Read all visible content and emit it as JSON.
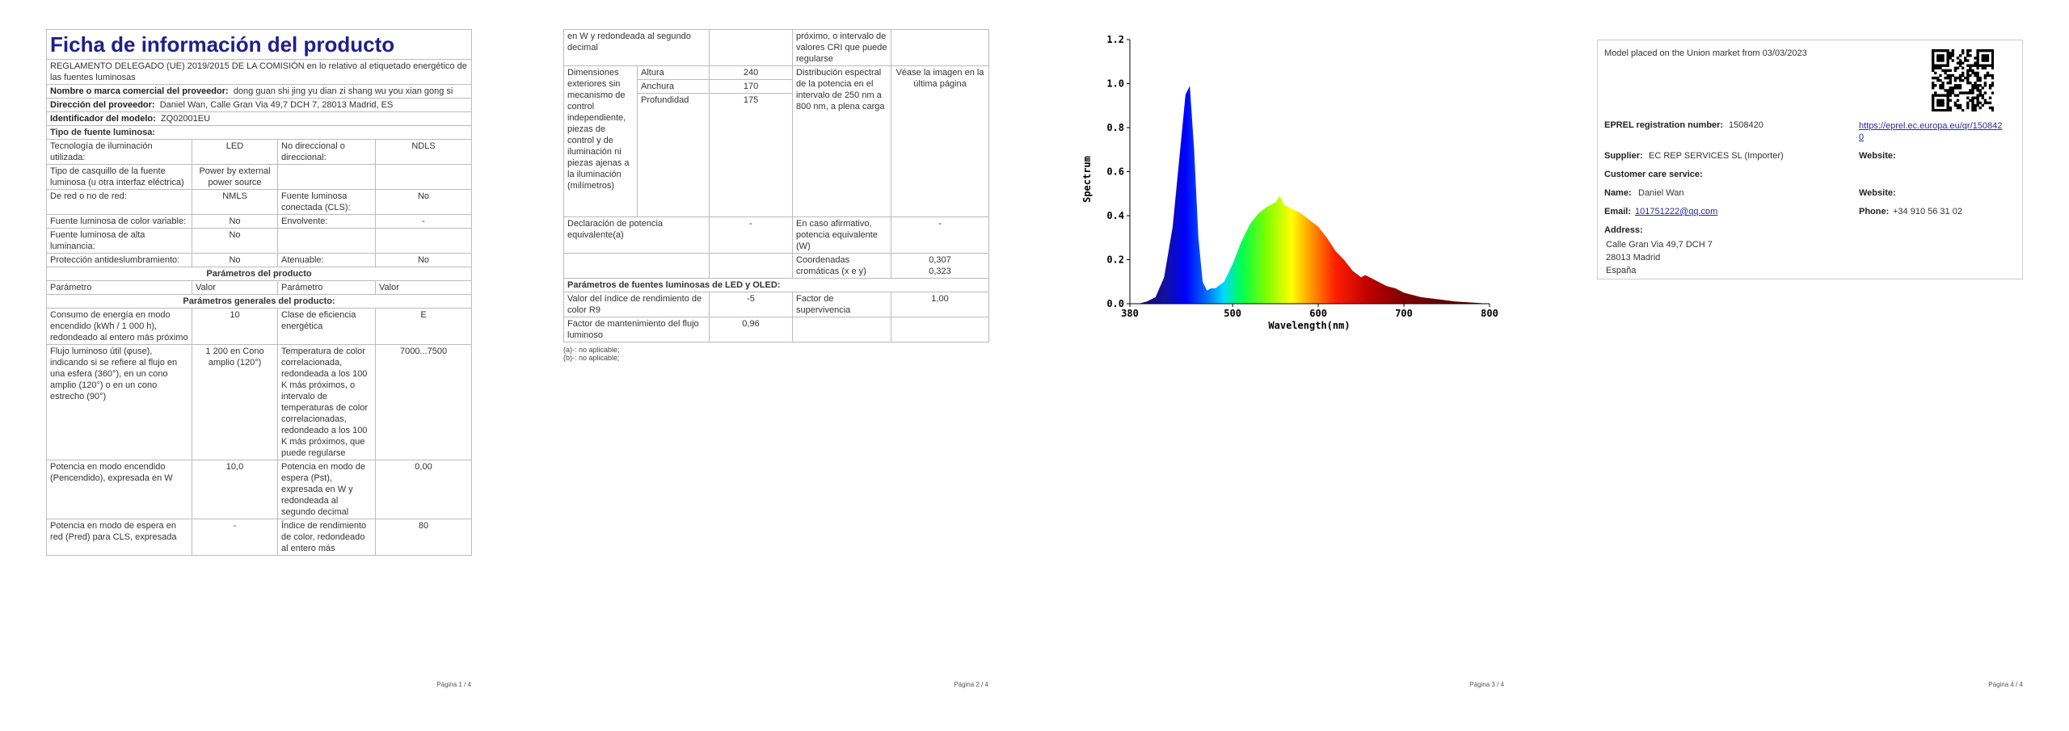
{
  "page1": {
    "title": "Ficha de información del producto",
    "regulation": "REGLAMENTO DELEGADO (UE) 2019/2015 DE LA COMISIÓN en lo relativo al etiquetado energético de las fuentes luminosas",
    "supplier_fields": [
      {
        "label": "Nombre o marca comercial del proveedor:",
        "value": "dong guan shi jing yu dian zi shang wu you xian gong si"
      },
      {
        "label": "Dirección del proveedor:",
        "value": "Daniel Wan, Calle Gran Via 49,7 DCH 7, 28013 Madrid, ES"
      },
      {
        "label": "Identificador del modelo:",
        "value": "ZQ02001EU"
      }
    ],
    "source_type_heading": "Tipo de fuente luminosa:",
    "source_type_rows": [
      [
        "Tecnología de iluminación utilizada:",
        "LED",
        "No direccional o direccional:",
        "NDLS"
      ],
      [
        "Tipo de casquillo de la fuente luminosa (u otra interfaz eléctrica)",
        "Power by external power source",
        null,
        null
      ],
      [
        "De red o no de red:",
        "NMLS",
        "Fuente luminosa conectada (CLS):",
        "No"
      ],
      [
        "Fuente luminosa de color variable:",
        "No",
        "Envolvente:",
        "-"
      ],
      [
        "Fuente luminosa de alta luminancia:",
        "No",
        null,
        null
      ],
      [
        "Protección antideslumbramiento:",
        "No",
        "Atenuable:",
        "No"
      ]
    ],
    "params_heading": "Parámetros del producto",
    "param_columns": [
      "Parámetro",
      "Valor",
      "Parámetro",
      "Valor"
    ],
    "general_heading": "Parámetros generales del producto:",
    "general_rows": [
      [
        "Consumo de energía en modo encendido (kWh / 1 000 h), redondeado al entero más próximo",
        "10",
        "Clase de eficiencia energética",
        "E"
      ],
      [
        "Flujo luminoso útil (φuse), indicando si se refiere al flujo en una esfera (360°), en un cono amplio (120°) o en un cono estrecho (90°)",
        "1 200 en Cono amplio (120°)",
        "Temperatura de color correlacionada, redondeada a los 100 K más próximos, o intervalo de temperaturas de color correlacionadas, redondeado a los 100 K más próximos, que puede regularse",
        "7000...7500"
      ],
      [
        "Potencia en modo encendido (Pencendido), expresada en W",
        "10,0",
        "Potencia en modo de espera (Pst), expresada en W y redondeada al segundo decimal",
        "0,00"
      ],
      [
        "Potencia en modo de espera en red (Pred) para CLS, expresada",
        "-",
        "Índice de rendimiento de color, redondeado al entero más",
        "80"
      ]
    ]
  },
  "page2": {
    "continued_rows": [
      [
        "en W y redondeada al segundo decimal",
        null,
        "próximo, o intervalo de valores CRI que puede regularse",
        null
      ]
    ],
    "dimensions": {
      "label": "Dimensiones exteriores sin mecanismo de control independiente, piezas de control y de iluminación ni piezas ajenas a la iluminación (milímetros)",
      "items": [
        {
          "label": "Altura",
          "value": "240"
        },
        {
          "label": "Anchura",
          "value": "170"
        },
        {
          "label": "Profundidad",
          "value": "175"
        }
      ],
      "spectral_label": "Distribución espectral de la potencia en el intervalo de 250 nm a 800 nm, a plena carga",
      "spectral_value": "Véase la imagen en la última página"
    },
    "equivalent_rows": [
      [
        "Declaración de potencia equivalente(a)",
        "-",
        "En caso afirmativo, potencia equivalente (W)",
        "-"
      ],
      [
        null,
        null,
        "Coordenadas cromáticas (x e y)",
        [
          "0,307",
          "0,323"
        ]
      ]
    ],
    "led_heading": "Parámetros de fuentes luminosas de LED y OLED:",
    "led_rows": [
      [
        "Valor del índice de rendimiento de color R9",
        "-5",
        "Factor de supervivencia",
        "1,00"
      ],
      [
        "Factor de mantenimiento del flujo luminoso",
        "0,96",
        null,
        null
      ]
    ],
    "footnotes": [
      "(a)-: no aplicable;",
      "(b)-: no aplicable;"
    ]
  },
  "chart_data": {
    "type": "area",
    "xlabel": "Wavelength(nm)",
    "ylabel": "Spectrum",
    "x": [
      380,
      390,
      400,
      410,
      420,
      430,
      440,
      445,
      450,
      455,
      460,
      465,
      470,
      475,
      480,
      490,
      500,
      510,
      520,
      530,
      540,
      550,
      555,
      560,
      570,
      580,
      590,
      600,
      610,
      620,
      630,
      640,
      650,
      655,
      660,
      670,
      680,
      690,
      700,
      720,
      740,
      760,
      780,
      800
    ],
    "values": [
      0,
      0,
      0.01,
      0.03,
      0.12,
      0.35,
      0.75,
      0.95,
      0.99,
      0.7,
      0.3,
      0.1,
      0.06,
      0.07,
      0.07,
      0.1,
      0.18,
      0.28,
      0.36,
      0.41,
      0.44,
      0.46,
      0.49,
      0.45,
      0.43,
      0.41,
      0.38,
      0.35,
      0.3,
      0.24,
      0.2,
      0.15,
      0.12,
      0.13,
      0.12,
      0.1,
      0.08,
      0.07,
      0.05,
      0.03,
      0.02,
      0.01,
      0.005,
      0
    ],
    "xlim": [
      380,
      800
    ],
    "ylim": [
      0,
      1.2
    ],
    "xticks": [
      380,
      500,
      600,
      700,
      800
    ],
    "yticks": [
      {
        "value": 0,
        "label": "0.0"
      },
      {
        "value": 0.2,
        "label": "0.2"
      },
      {
        "value": 0.4,
        "label": "0.4"
      },
      {
        "value": 0.6,
        "label": "0.6"
      },
      {
        "value": 0.8,
        "label": "0.8"
      },
      {
        "value": 1,
        "label": "1.0"
      },
      {
        "value": 1.2,
        "label": "1.2"
      }
    ]
  },
  "page4": {
    "placed": "Model placed on the Union market from 03/03/2023",
    "eprel_label": "EPREL registration number:",
    "eprel_value": "1508420",
    "eprel_link": "https://eprel.ec.europa.eu/qr/1508420",
    "supplier_label": "Supplier:",
    "supplier_value": "EC REP SERVICES SL (Importer)",
    "website_label": "Website:",
    "customer_care": "Customer care service:",
    "name_label": "Name:",
    "name_value": "Daniel Wan",
    "website2_label": "Website:",
    "email_label": "Email:",
    "email_value": "101751222@qq.com",
    "phone_label": "Phone:",
    "phone_value": "+34 910 56 31 02",
    "address_label": "Address:",
    "address_lines": [
      "Calle Gran Via 49,7 DCH 7",
      "28013 Madrid",
      "España"
    ]
  },
  "footers": [
    "Página 1 / 4",
    "Página 2 / 4",
    "Página 3 / 4",
    "Página 4 / 4"
  ]
}
